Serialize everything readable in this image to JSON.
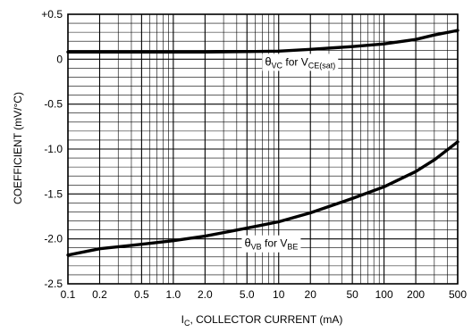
{
  "chart_data": {
    "type": "line",
    "x_scale": "log",
    "xlim": [
      0.1,
      500
    ],
    "ylim": [
      -2.5,
      0.5
    ],
    "grid": true,
    "xlabel_main": "I",
    "xlabel_sub": "C",
    "xlabel_rest": ", COLLECTOR CURRENT (mA)",
    "ylabel": "COEFFICIENT (mV/°C)",
    "x_ticks": [
      {
        "value": 0.1,
        "label": "0.1"
      },
      {
        "value": 0.2,
        "label": "0.2"
      },
      {
        "value": 0.5,
        "label": "0.5"
      },
      {
        "value": 1,
        "label": "1.0"
      },
      {
        "value": 2,
        "label": "2.0"
      },
      {
        "value": 5,
        "label": "5.0"
      },
      {
        "value": 10,
        "label": "10"
      },
      {
        "value": 20,
        "label": "20"
      },
      {
        "value": 50,
        "label": "50"
      },
      {
        "value": 100,
        "label": "100"
      },
      {
        "value": 200,
        "label": "200"
      },
      {
        "value": 500,
        "label": "500"
      }
    ],
    "y_ticks": [
      {
        "value": 0.5,
        "label": "+0.5"
      },
      {
        "value": 0,
        "label": "0"
      },
      {
        "value": -0.5,
        "label": "-0.5"
      },
      {
        "value": -1,
        "label": "-1.0"
      },
      {
        "value": -1.5,
        "label": "-1.5"
      },
      {
        "value": -2,
        "label": "-2.0"
      },
      {
        "value": -2.5,
        "label": "-2.5"
      }
    ],
    "series": [
      {
        "key": "theta_vc",
        "label": {
          "theta": "θ",
          "sub1": "VC",
          "mid": " for V",
          "sub2": "CE(sat)"
        },
        "label_anchor": {
          "x": 16,
          "y": -0.07
        },
        "points": [
          {
            "x": 0.1,
            "y": 0.08
          },
          {
            "x": 0.5,
            "y": 0.08
          },
          {
            "x": 2,
            "y": 0.08
          },
          {
            "x": 5,
            "y": 0.085
          },
          {
            "x": 10,
            "y": 0.09
          },
          {
            "x": 20,
            "y": 0.11
          },
          {
            "x": 50,
            "y": 0.14
          },
          {
            "x": 100,
            "y": 0.17
          },
          {
            "x": 200,
            "y": 0.22
          },
          {
            "x": 300,
            "y": 0.27
          },
          {
            "x": 500,
            "y": 0.32
          }
        ]
      },
      {
        "key": "theta_vb",
        "label": {
          "theta": "θ",
          "sub1": "VB",
          "mid": " for V",
          "sub2": "BE"
        },
        "label_anchor": {
          "x": 8.5,
          "y": -2.09
        },
        "points": [
          {
            "x": 0.1,
            "y": -2.18
          },
          {
            "x": 0.2,
            "y": -2.11
          },
          {
            "x": 0.5,
            "y": -2.06
          },
          {
            "x": 1,
            "y": -2.02
          },
          {
            "x": 2,
            "y": -1.97
          },
          {
            "x": 5,
            "y": -1.88
          },
          {
            "x": 10,
            "y": -1.81
          },
          {
            "x": 20,
            "y": -1.71
          },
          {
            "x": 50,
            "y": -1.55
          },
          {
            "x": 100,
            "y": -1.42
          },
          {
            "x": 200,
            "y": -1.25
          },
          {
            "x": 300,
            "y": -1.12
          },
          {
            "x": 500,
            "y": -0.92
          }
        ]
      }
    ]
  }
}
